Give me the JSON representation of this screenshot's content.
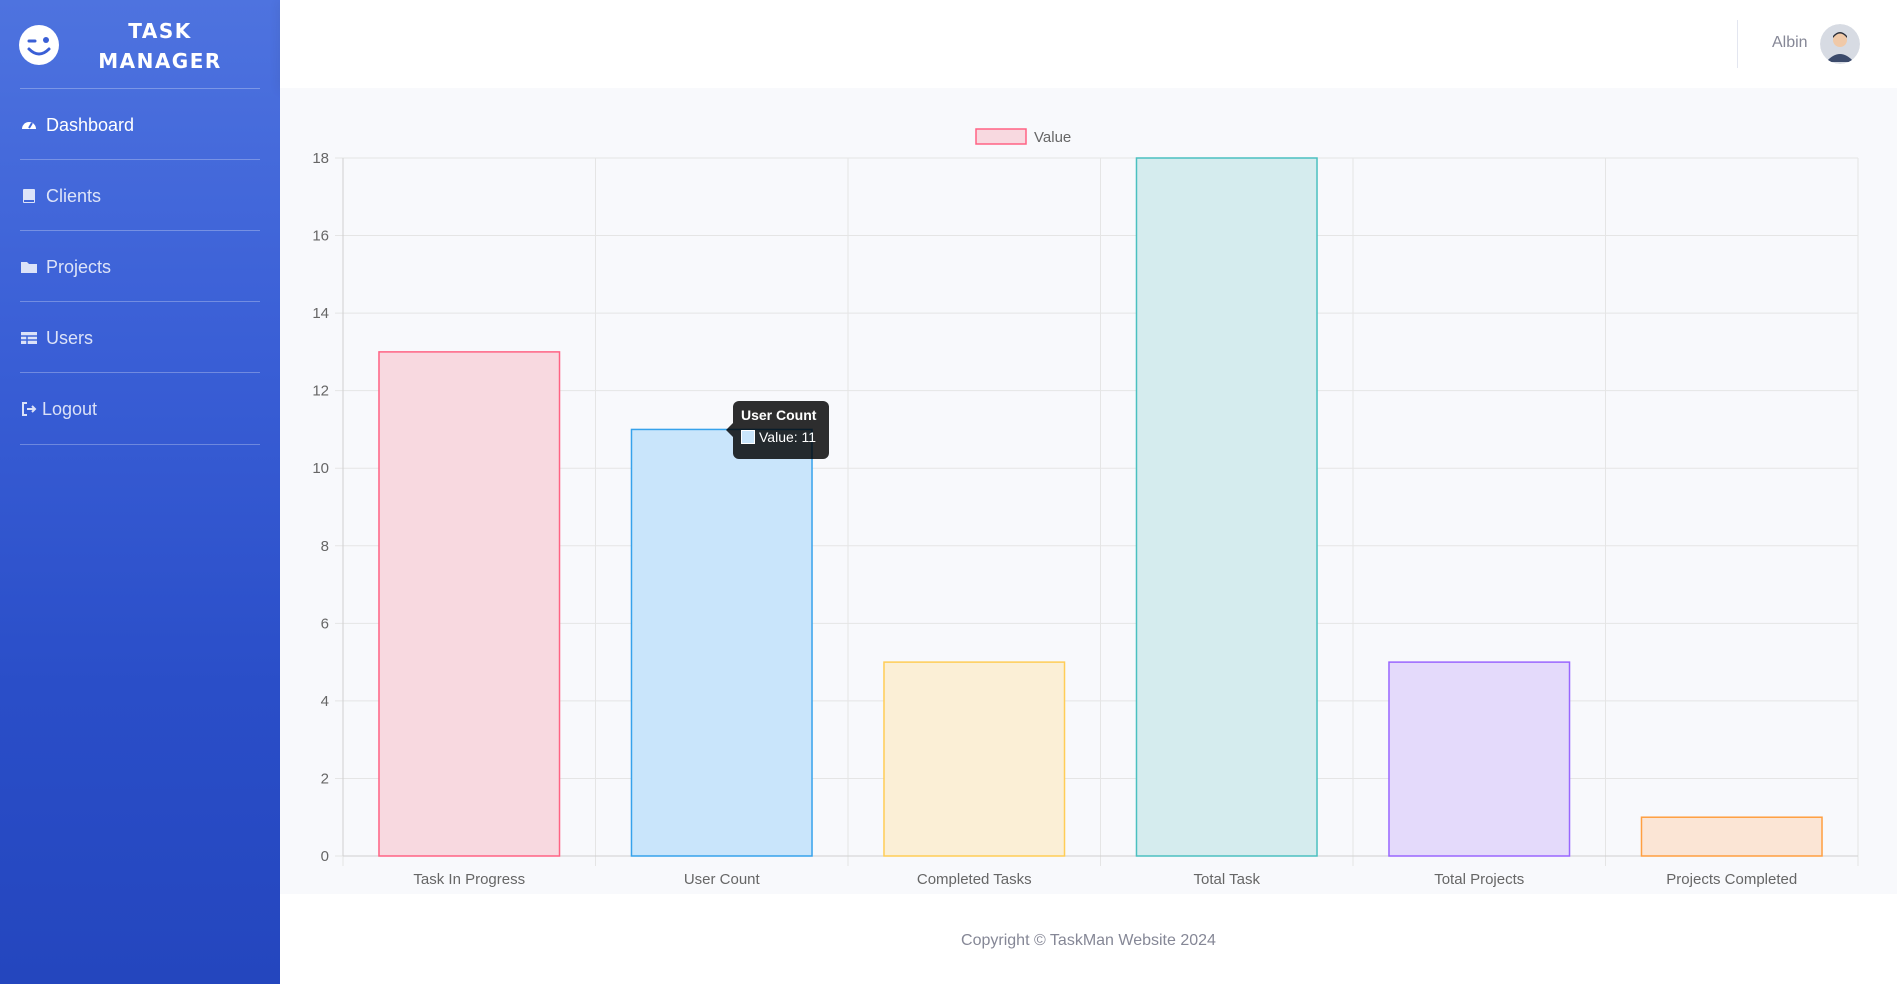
{
  "app": {
    "brand_line1": "TASK",
    "brand_line2": "MANAGER",
    "brand_icon": "wink-face-icon"
  },
  "sidebar": {
    "items": [
      {
        "label": "Dashboard",
        "icon": "tachometer-icon",
        "active": true
      },
      {
        "label": "Clients",
        "icon": "book-icon",
        "active": false
      },
      {
        "label": "Projects",
        "icon": "folder-icon",
        "active": false
      },
      {
        "label": "Users",
        "icon": "table-icon",
        "active": false
      },
      {
        "label": "Logout",
        "icon": "sign-out-icon",
        "active": false
      }
    ]
  },
  "topbar": {
    "user_name": "Albin",
    "avatar_icon": "user-avatar"
  },
  "tooltip": {
    "title": "User Count",
    "body": "Value: 11"
  },
  "footer": {
    "copyright": "Copyright © TaskMan Website 2024"
  },
  "chart_data": {
    "type": "bar",
    "categories": [
      "Task In Progress",
      "User Count",
      "Completed Tasks",
      "Total Task",
      "Total Projects",
      "Projects Completed"
    ],
    "series": [
      {
        "name": "Value",
        "values": [
          13,
          11,
          5,
          18,
          5,
          1
        ]
      }
    ],
    "bar_colors": [
      "#f8d9e0",
      "#c9e5fb",
      "#fbefd6",
      "#d5ecee",
      "#e4dafb",
      "#fbe5d5"
    ],
    "bar_borders": [
      "#ff6384",
      "#36a2eb",
      "#ffcd56",
      "#4bc0c0",
      "#9966ff",
      "#ff9f40"
    ],
    "ylim": [
      0,
      18
    ],
    "yticks": [
      0,
      2,
      4,
      6,
      8,
      10,
      12,
      14,
      16,
      18
    ],
    "grid": true,
    "legend": "top-center",
    "legend_swatch": "#f8d9e0",
    "legend_swatch_border": "#ff6384"
  }
}
